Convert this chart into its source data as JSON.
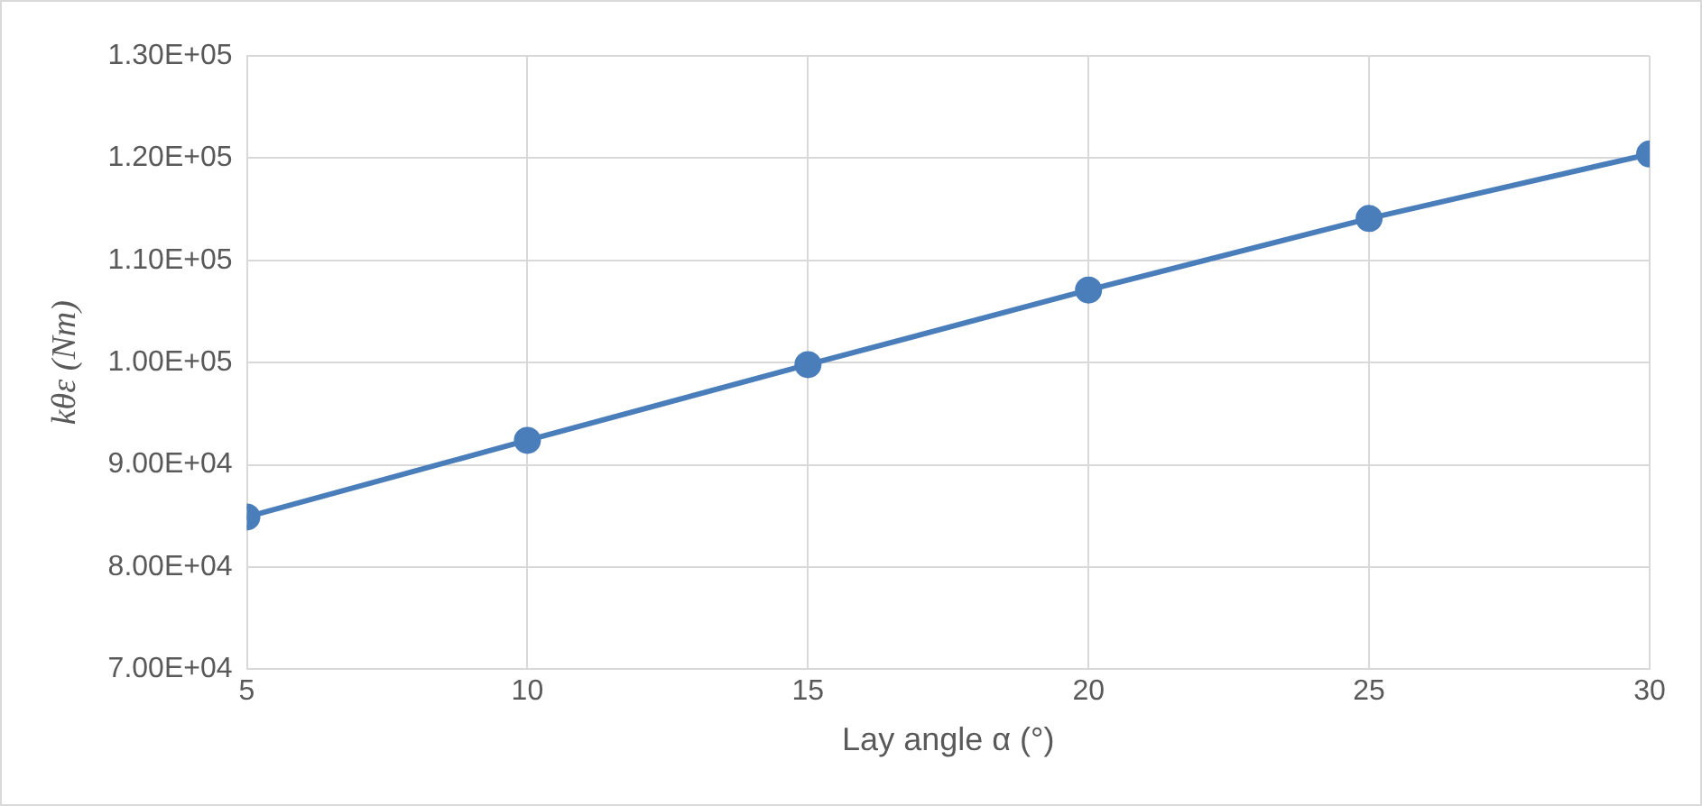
{
  "chart_data": {
    "type": "line",
    "xlabel": "Lay angle α (°)",
    "ylabel": "kθε (Nm)",
    "x": [
      5,
      10,
      15,
      20,
      25,
      30
    ],
    "series": [
      {
        "color": "#4a7ebb",
        "values": [
          84900,
          92400,
          99800,
          107100,
          114100,
          120400
        ]
      }
    ],
    "xlim": [
      5,
      30
    ],
    "xticks": [
      5,
      10,
      15,
      20,
      25,
      30
    ],
    "ylim": [
      70000,
      130000
    ],
    "yticks": [
      {
        "value": 70000,
        "label": "7.00E+04"
      },
      {
        "value": 80000,
        "label": "8.00E+04"
      },
      {
        "value": 90000,
        "label": "9.00E+04"
      },
      {
        "value": 100000,
        "label": "1.00E+05"
      },
      {
        "value": 110000,
        "label": "1.10E+05"
      },
      {
        "value": 120000,
        "label": "1.20E+05"
      },
      {
        "value": 130000,
        "label": "1.30E+05"
      }
    ],
    "grid": true,
    "legend": false,
    "marker": "circle",
    "line_style": "solid"
  }
}
